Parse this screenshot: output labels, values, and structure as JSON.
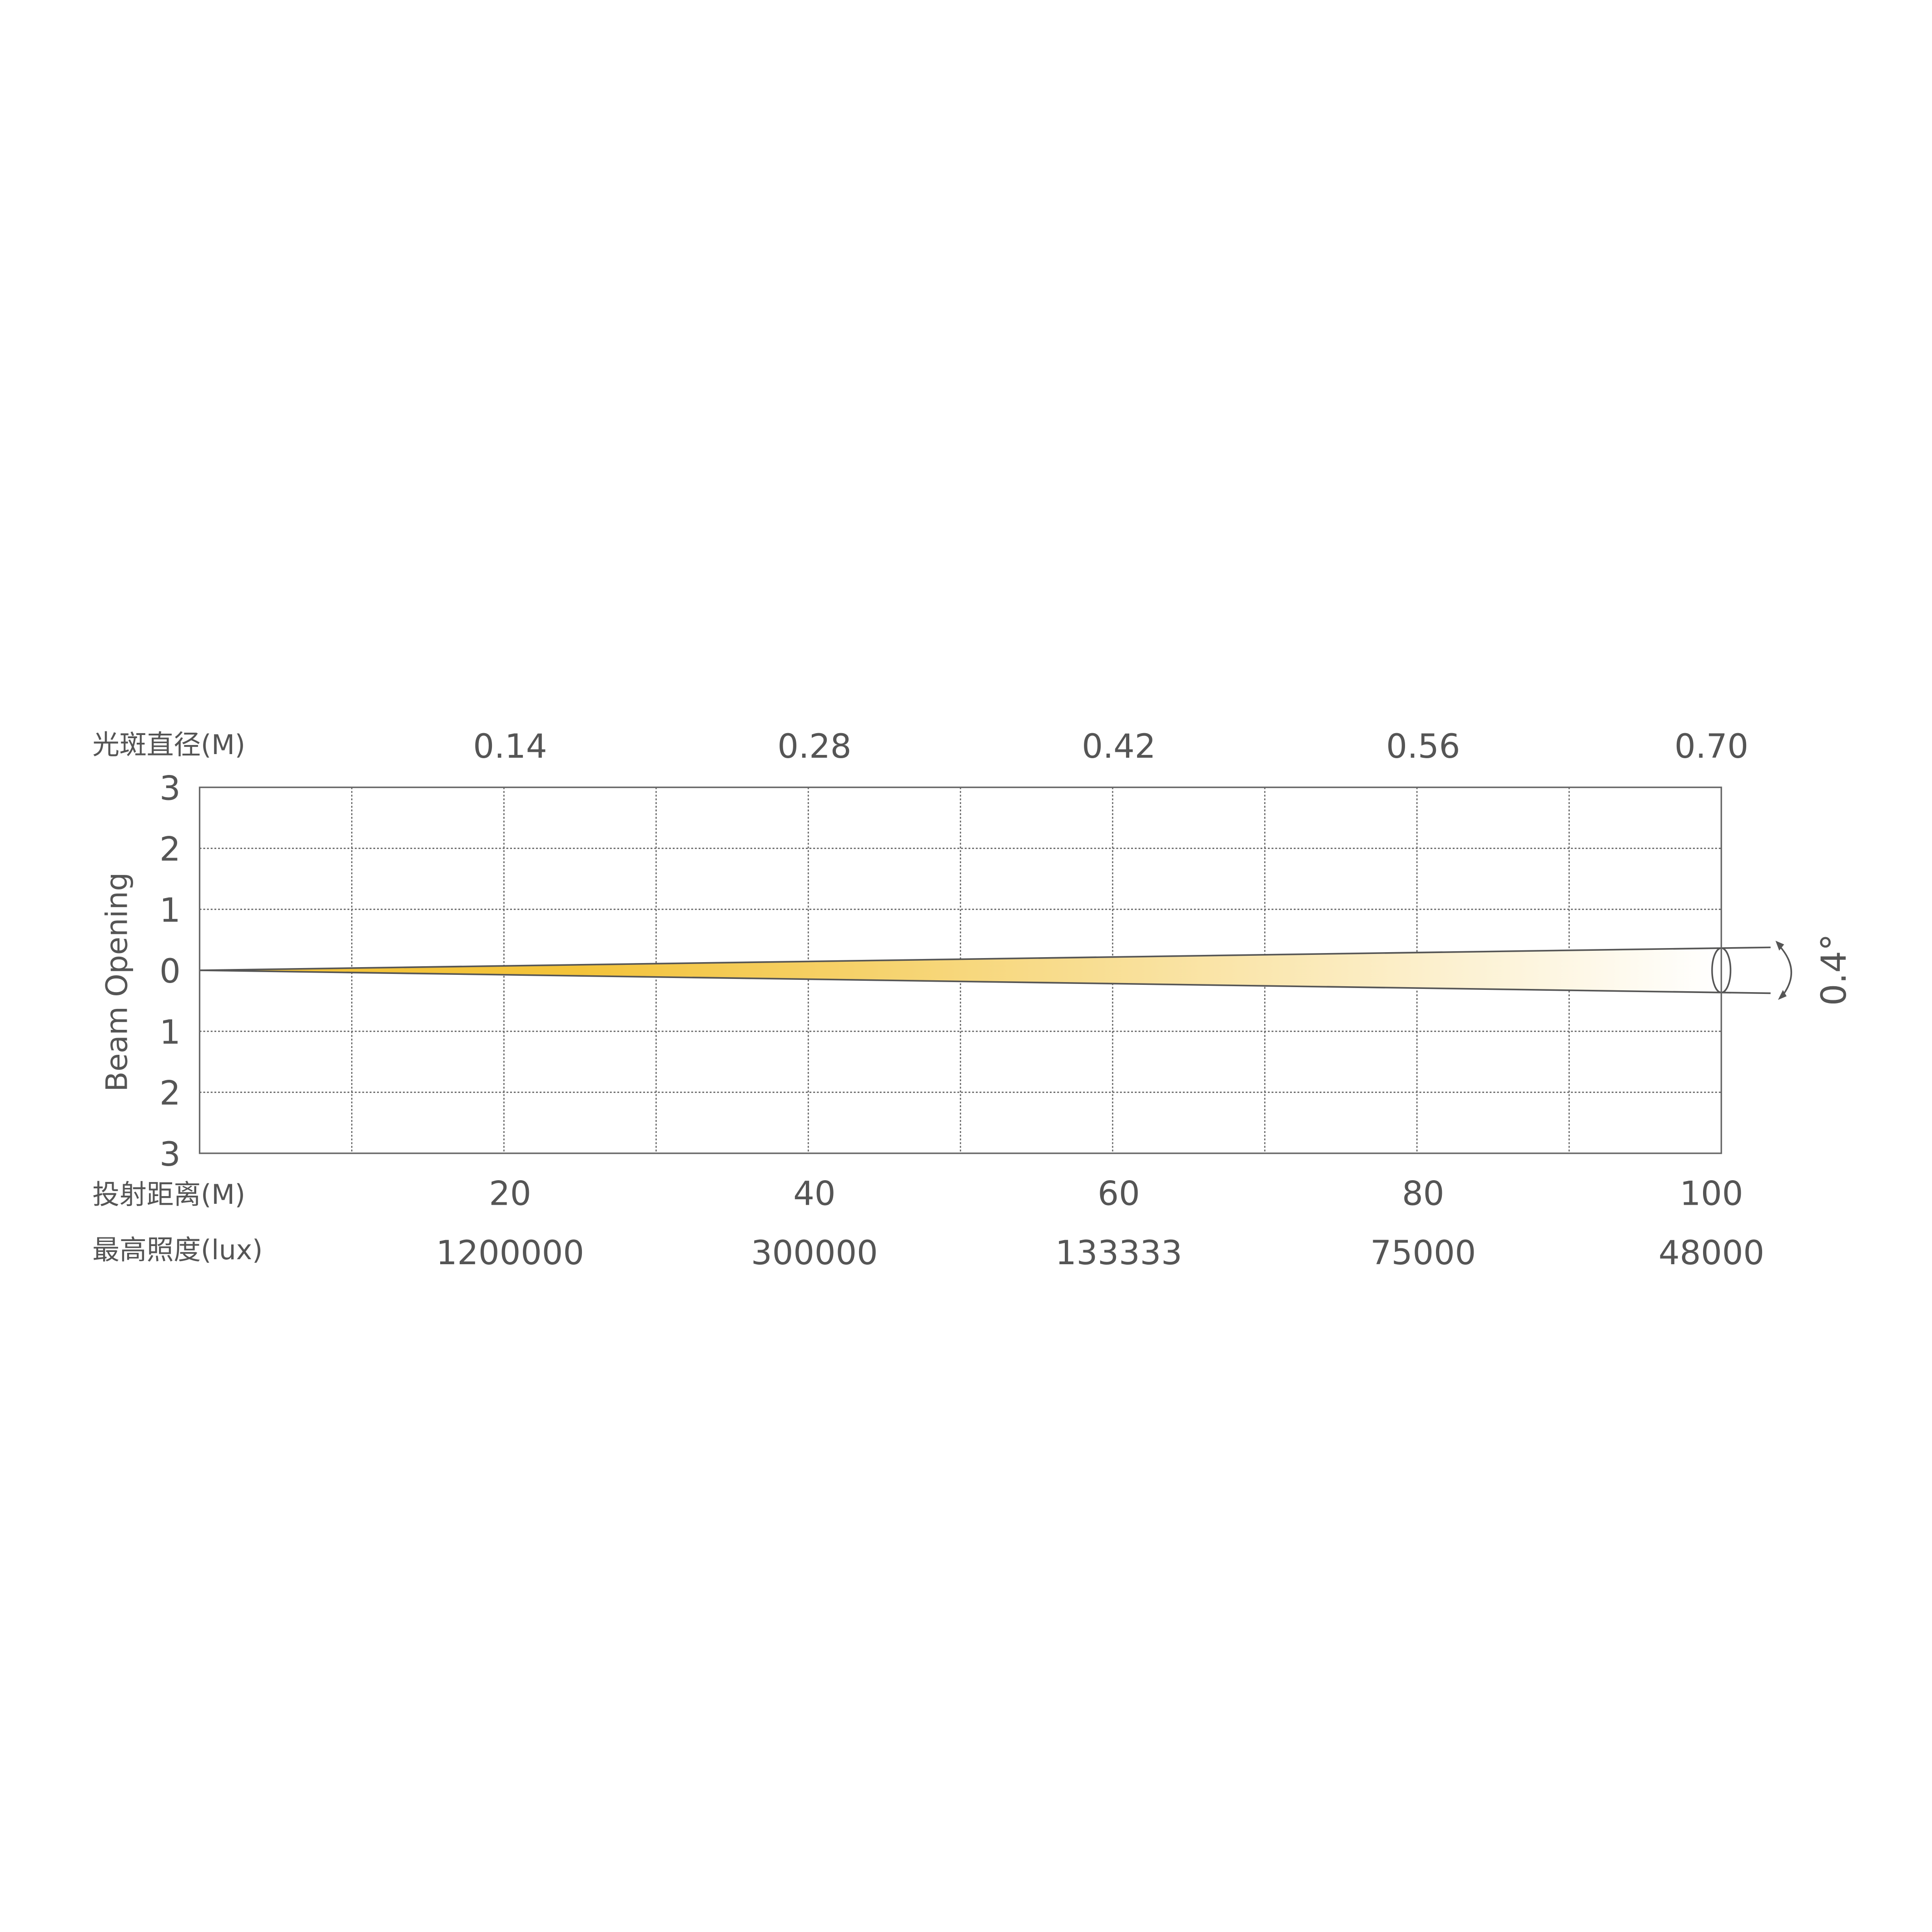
{
  "chart_data": {
    "type": "area",
    "title": "",
    "top_axis_label": "光斑直径(M)",
    "bottom_axis_label": "投射距离(M)",
    "lux_label": "最高照度(lux)",
    "ylabel": "Beam Opening",
    "beam_angle_label": "0.4°",
    "distances": [
      20,
      40,
      60,
      80,
      100
    ],
    "distance_tick_labels": [
      "20",
      "40",
      "60",
      "80",
      "100"
    ],
    "spot_diameters": [
      "0.14",
      "0.28",
      "0.42",
      "0.56",
      "0.70"
    ],
    "max_illuminance": [
      "1200000",
      "300000",
      "133333",
      "75000",
      "48000"
    ],
    "y_tick_labels": [
      "3",
      "2",
      "1",
      "0",
      "1",
      "2",
      "3"
    ],
    "xlim": [
      0,
      100
    ],
    "ylim": [
      -3,
      3
    ],
    "grid": true,
    "beam_angle_deg": 0.4,
    "colors": {
      "beam_start": "#f3c33a",
      "beam_end": "#ffffff",
      "line": "#555555",
      "grid": "#666666"
    }
  }
}
